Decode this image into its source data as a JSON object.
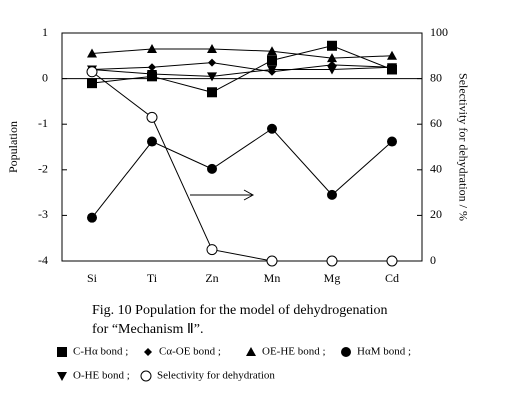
{
  "chart_data": {
    "type": "line",
    "title": [
      "Fig. 10   Population for the model of dehydrogenation",
      "for “Mechanism Ⅱ”."
    ],
    "categories": [
      "Si",
      "Ti",
      "Zn",
      "Mn",
      "Mg",
      "Cd"
    ],
    "y_label": "Population",
    "y2_label": "Selectivity for dehydration / %",
    "ylim": [
      -4,
      1
    ],
    "yticks": [
      -4,
      -3,
      -2,
      -1,
      0,
      1
    ],
    "y2lim": [
      0,
      100
    ],
    "y2ticks": [
      0,
      20,
      40,
      60,
      80,
      100
    ],
    "series": [
      {
        "name": "C-Hα bond ;",
        "color": "#000000",
        "marker": "square",
        "values": [
          -0.1,
          0.05,
          -0.3,
          0.4,
          0.72,
          0.2
        ]
      },
      {
        "name": "Cα-OE  bond ;",
        "color": "#000000",
        "marker": "diamond",
        "values": [
          0.2,
          0.25,
          0.35,
          0.15,
          0.3,
          0.25
        ]
      },
      {
        "name": "OE-HE  bond ;",
        "color": "#000000",
        "marker": "triangle-up",
        "values": [
          0.55,
          0.65,
          0.65,
          0.6,
          0.45,
          0.5
        ]
      },
      {
        "name": "HαM  bond ;",
        "color": "#000000",
        "marker": "circle",
        "values": [
          -3.05,
          -1.38,
          -1.98,
          -1.1,
          -2.55,
          -1.38
        ]
      },
      {
        "name": "O-HE bond ;",
        "color": "#000000",
        "marker": "triangle-down",
        "values": [
          0.2,
          0.1,
          0.05,
          0.2,
          0.2,
          0.25
        ]
      },
      {
        "name": "Selectivity for dehydration",
        "color": "#000000",
        "marker": "open-circle",
        "axis": "y2",
        "values": [
          83,
          63,
          5,
          0,
          0,
          0
        ]
      }
    ]
  }
}
